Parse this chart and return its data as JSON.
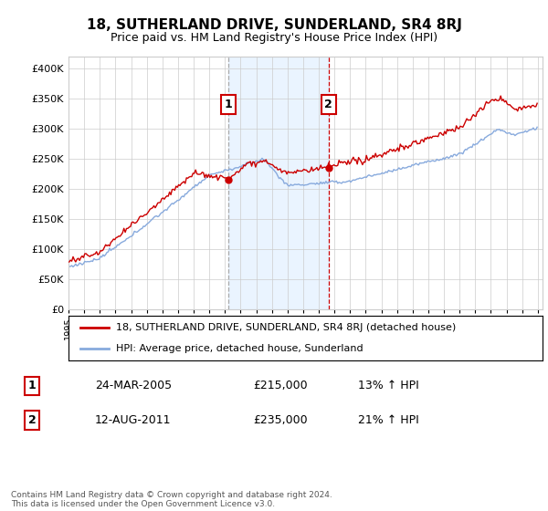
{
  "title": "18, SUTHERLAND DRIVE, SUNDERLAND, SR4 8RJ",
  "subtitle": "Price paid vs. HM Land Registry's House Price Index (HPI)",
  "hpi_label": "HPI: Average price, detached house, Sunderland",
  "property_label": "18, SUTHERLAND DRIVE, SUNDERLAND, SR4 8RJ (detached house)",
  "footnote": "Contains HM Land Registry data © Crown copyright and database right 2024.\nThis data is licensed under the Open Government Licence v3.0.",
  "sale1_date": "24-MAR-2005",
  "sale1_price": 215000,
  "sale1_hpi": "13%",
  "sale2_date": "12-AUG-2011",
  "sale2_price": 235000,
  "sale2_hpi": "21%",
  "ylim": [
    0,
    420000
  ],
  "yticks": [
    0,
    50000,
    100000,
    150000,
    200000,
    250000,
    300000,
    350000,
    400000
  ],
  "xlim_start": 1995,
  "xlim_end": 2025.3,
  "property_color": "#cc0000",
  "hpi_color": "#88aadd",
  "sale1_vline_color": "#aaaaaa",
  "sale2_vline_color": "#cc0000",
  "shade_color": "#ddeeff",
  "shade_alpha": 0.6,
  "grid_color": "#cccccc",
  "background_color": "#ffffff",
  "title_fontsize": 11,
  "subtitle_fontsize": 9
}
